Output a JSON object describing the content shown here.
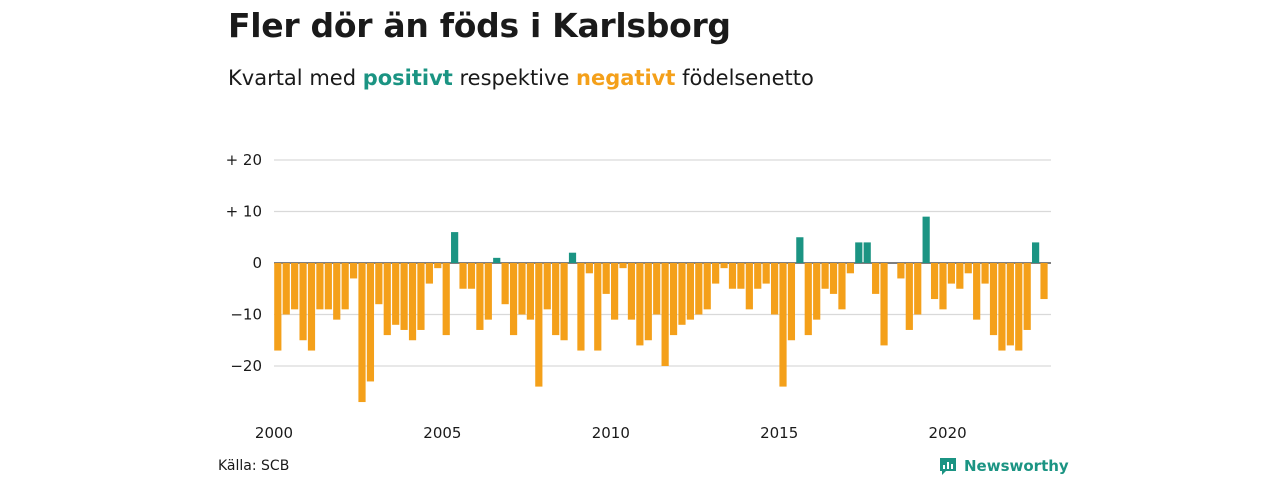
{
  "title": "Fler dör än föds i Karlsborg",
  "subtitle": {
    "prefix": "Kvartal med ",
    "positive_word": "positivt",
    "middle": " respektive ",
    "negative_word": "negativt",
    "suffix": " födelsenetto"
  },
  "source": "Källa: SCB",
  "brand": "Newsworthy",
  "colors": {
    "positive": "#1b9483",
    "negative": "#f4a01a",
    "grid": "#d9d9d9",
    "axis": "#333333"
  },
  "chart_data": {
    "type": "bar",
    "x_start": 2000,
    "x_end": 2023,
    "ylim": [
      -28,
      22
    ],
    "yticks": [
      {
        "value": 20,
        "label": "+ 20"
      },
      {
        "value": 10,
        "label": "+ 10"
      },
      {
        "value": 0,
        "label": "0"
      },
      {
        "value": -10,
        "label": "−10"
      },
      {
        "value": -20,
        "label": "−20"
      }
    ],
    "xticks": [
      {
        "value": 2000,
        "label": "2000"
      },
      {
        "value": 2005,
        "label": "2005"
      },
      {
        "value": 2010,
        "label": "2010"
      },
      {
        "value": 2015,
        "label": "2015"
      },
      {
        "value": 2020,
        "label": "2020"
      }
    ],
    "values": [
      -17,
      -10,
      -9,
      -15,
      -17,
      -9,
      -9,
      -11,
      -9,
      -3,
      -27,
      -23,
      -8,
      -14,
      -12,
      -13,
      -15,
      -13,
      -4,
      -1,
      -14,
      6,
      -5,
      -5,
      -13,
      -11,
      1,
      -8,
      -14,
      -10,
      -11,
      -24,
      -9,
      -14,
      -15,
      2,
      -17,
      -2,
      -17,
      -6,
      -11,
      -1,
      -11,
      -16,
      -15,
      -10,
      -20,
      -14,
      -12,
      -11,
      -10,
      -9,
      -4,
      -1,
      -5,
      -5,
      -9,
      -5,
      -4,
      -10,
      -24,
      -15,
      5,
      -14,
      -11,
      -5,
      -6,
      -9,
      -2,
      4,
      4,
      -6,
      -16,
      0,
      -3,
      -13,
      -10,
      9,
      -7,
      -9,
      -4,
      -5,
      -2,
      -11,
      -4,
      -14,
      -17,
      -16,
      -17,
      -13,
      4,
      -7
    ]
  }
}
